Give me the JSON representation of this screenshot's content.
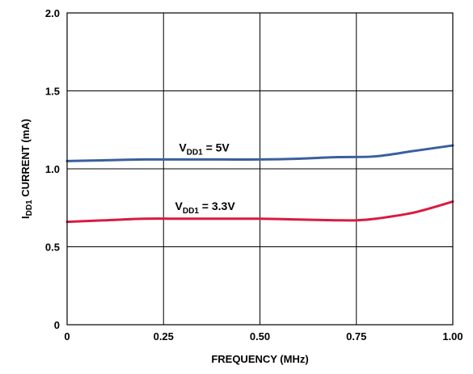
{
  "chart_data": {
    "type": "line",
    "xlabel": "FREQUENCY (MHz)",
    "ylabel": {
      "prefix": "I",
      "subscript": "DD1",
      "suffix": " CURRENT (mA)"
    },
    "xlim": [
      0,
      1.0
    ],
    "ylim": [
      0,
      2.0
    ],
    "x_ticks": [
      0,
      0.25,
      0.5,
      0.75,
      1.0
    ],
    "x_tick_labels": [
      "0",
      "0.25",
      "0.50",
      "0.75",
      "1.00"
    ],
    "y_ticks": [
      0,
      0.5,
      1.0,
      1.5,
      2.0
    ],
    "y_tick_labels": [
      "0",
      "0.5",
      "1.0",
      "1.5",
      "2.0"
    ],
    "grid": true,
    "series": [
      {
        "label": {
          "prefix": "V",
          "subscript": "DD1",
          "suffix": " = 5V"
        },
        "color": "#3a5f9e",
        "x": [
          0,
          0.1,
          0.2,
          0.3,
          0.4,
          0.5,
          0.6,
          0.7,
          0.8,
          0.9,
          1.0
        ],
        "y": [
          1.05,
          1.055,
          1.06,
          1.06,
          1.06,
          1.06,
          1.065,
          1.075,
          1.08,
          1.115,
          1.15
        ]
      },
      {
        "label": {
          "prefix": "V",
          "subscript": "DD1",
          "suffix": " = 3.3V"
        },
        "color": "#d81b3f",
        "x": [
          0,
          0.1,
          0.2,
          0.3,
          0.4,
          0.5,
          0.6,
          0.7,
          0.75,
          0.8,
          0.9,
          1.0
        ],
        "y": [
          0.66,
          0.67,
          0.68,
          0.68,
          0.68,
          0.68,
          0.675,
          0.67,
          0.67,
          0.68,
          0.72,
          0.79
        ]
      }
    ]
  }
}
